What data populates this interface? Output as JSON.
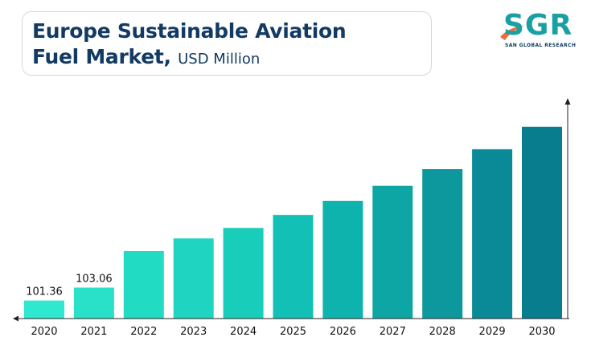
{
  "header": {
    "title_line1": "Europe Sustainable Aviation",
    "title_line2": "Fuel Market,",
    "title_unit": "USD Million"
  },
  "logo": {
    "letters": "SGR",
    "tagline": "SAN GLOBAL RESEARCH",
    "colors": {
      "primary": "#1a9fa3",
      "accent": "#f06a3b",
      "text": "#123a63"
    }
  },
  "chart_data": {
    "type": "bar",
    "title": "Europe Sustainable Aviation Fuel Market, USD Million",
    "categories": [
      "2020",
      "2021",
      "2022",
      "2023",
      "2024",
      "2025",
      "2026",
      "2027",
      "2028",
      "2029",
      "2030"
    ],
    "values": [
      101.36,
      103.06,
      107.86,
      109.51,
      110.88,
      112.59,
      114.42,
      116.42,
      118.61,
      121.21,
      124.13
    ],
    "data_labels": [
      "101.36",
      "103.06",
      "",
      "",
      "",
      "",
      "",
      "",
      "",
      "",
      ""
    ],
    "axis_baseline": 99,
    "ylim": [
      99,
      126
    ],
    "grid": false,
    "legend": "none",
    "bar_colors": [
      "#2ee8cf",
      "#28e1c8",
      "#22dbc3",
      "#1fd4c0",
      "#19cdbb",
      "#13c0b5",
      "#0fb3ad",
      "#0ea5a5",
      "#0c989d",
      "#0a8a96",
      "#087d8e"
    ]
  }
}
